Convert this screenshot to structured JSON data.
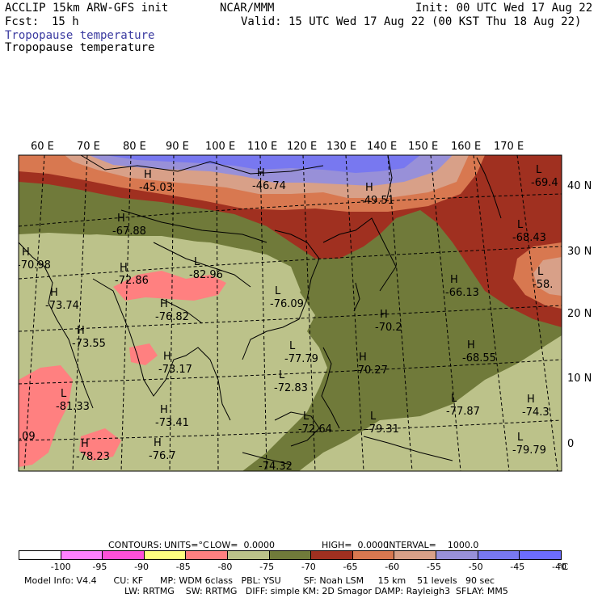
{
  "header": {
    "model_line": "ACCLIP 15km ARW-GFS init",
    "fcst_label": "Fcst:",
    "fcst_value": "15 h",
    "org": "NCAR/MMM",
    "init": "Init: 00 UTC Wed 17 Aug 22",
    "valid": "Valid: 15 UTC Wed 17 Aug 22 (00 KST Thu 18 Aug 22)",
    "field_title_1": "Tropopause temperature",
    "field_title_2": "Tropopause temperature"
  },
  "map": {
    "lon_labels": [
      "60 E",
      "70 E",
      "80 E",
      "90 E",
      "100 E",
      "110 E",
      "120 E",
      "130 E",
      "140 E",
      "150 E",
      "160 E",
      "170 E"
    ],
    "lat_labels": [
      "40 N",
      "30 N",
      "20 N",
      "10 N",
      "0"
    ],
    "markers": [
      {
        "sym": "H",
        "value": "-45.03"
      },
      {
        "sym": "H",
        "value": "-46.74"
      },
      {
        "sym": "H",
        "value": "-49.51"
      },
      {
        "sym": "L",
        "value": "-69.4"
      },
      {
        "sym": "H",
        "value": "-67.88"
      },
      {
        "sym": "L",
        "value": "-68.43"
      },
      {
        "sym": "H",
        "value": "-70.98"
      },
      {
        "sym": "L",
        "value": "-82.96"
      },
      {
        "sym": "H",
        "value": "-72.86"
      },
      {
        "sym": "L",
        "value": "-58."
      },
      {
        "sym": "H",
        "value": "-66.13"
      },
      {
        "sym": "H",
        "value": "-73.74"
      },
      {
        "sym": "L",
        "value": "-76.09"
      },
      {
        "sym": "H",
        "value": "-76.82"
      },
      {
        "sym": "H",
        "value": "-70.2"
      },
      {
        "sym": "H",
        "value": "-73.55"
      },
      {
        "sym": "L",
        "value": "-77.79"
      },
      {
        "sym": "H",
        "value": "-68.55"
      },
      {
        "sym": "H",
        "value": "-73.17"
      },
      {
        "sym": "H",
        "value": "-70.27"
      },
      {
        "sym": "L",
        "value": "-81.33"
      },
      {
        "sym": "L",
        "value": "-72.83"
      },
      {
        "sym": "L",
        "value": "-77.87"
      },
      {
        "sym": "H",
        "value": "-74.3"
      },
      {
        "sym": "H",
        "value": "-73.41"
      },
      {
        "sym": "L",
        "value": "-72.64"
      },
      {
        "sym": "L",
        "value": "-79.31"
      },
      {
        "sym": "L",
        "value": "-79.79"
      },
      {
        "sym": "H",
        "value": "-76.7"
      },
      {
        "sym": "H",
        "value": "-78.23"
      },
      {
        "sym": "",
        "value": "-74.32"
      },
      {
        "sym": "",
        "value": ".09"
      }
    ]
  },
  "contour_info": {
    "contours": "CONTOURS:",
    "units": "UNITS=°C",
    "low": "LOW=  0.0000",
    "high": "HIGH=  0.0000",
    "interval": "INTERVAL=    1000.0"
  },
  "colorbar": {
    "labels": [
      "-100",
      "-95",
      "-90",
      "-85",
      "-80",
      "-75",
      "-70",
      "-65",
      "-60",
      "-55",
      "-50",
      "-45",
      "-40"
    ],
    "unit": "°C",
    "colors": [
      "#ffffff",
      "#ff80ff",
      "#ff50d8",
      "#ffff80",
      "#ff8080",
      "#bcc28a",
      "#707a3a",
      "#a03020",
      "#d87850",
      "#d8a088",
      "#9890d8",
      "#7878f0",
      "#6c6cff"
    ]
  },
  "footer": {
    "line1": "Model Info: V4.4      CU: KF      MP: WDM 6class   PBL: YSU        SF: Noah LSM     15 km    51 levels   90 sec",
    "line2": "LW: RRTMG    SW: RRTMG   DIFF: simple KM: 2D Smagor DAMP: Rayleigh3  SFLAY: MM5"
  }
}
